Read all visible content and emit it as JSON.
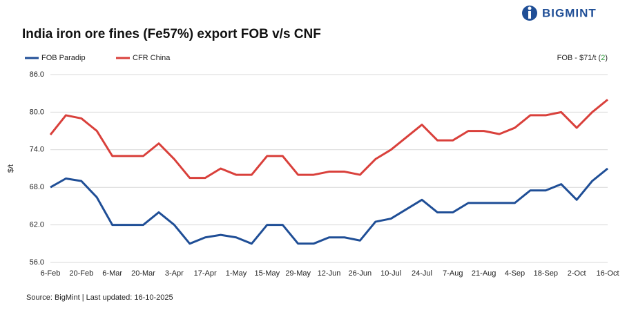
{
  "brand": "BIGMINT",
  "chart_data": {
    "type": "line",
    "title": "India iron ore fines (Fe57%) export FOB v/s CNF",
    "annotation": {
      "prefix": "FOB - $71/t (",
      "highlight": "2",
      "suffix": ")"
    },
    "y_label": "$/t",
    "source": "Source: BigMint | Last updated: 16-10-2025",
    "categories": [
      "6-Feb",
      null,
      "20-Feb",
      null,
      "6-Mar",
      null,
      "20-Mar",
      null,
      "3-Apr",
      null,
      "17-Apr",
      null,
      "1-May",
      null,
      "15-May",
      null,
      "29-May",
      null,
      "12-Jun",
      null,
      "26-Jun",
      null,
      "10-Jul",
      null,
      "24-Jul",
      null,
      "7-Aug",
      null,
      "21-Aug",
      null,
      "4-Sep",
      null,
      "18-Sep",
      null,
      "2-Oct",
      null,
      "16-Oct"
    ],
    "series": [
      {
        "name": "FOB Paradip",
        "color": "#1f4e96",
        "values": [
          68.0,
          69.4,
          69.0,
          66.4,
          62.0,
          62.0,
          62.0,
          64.0,
          62.0,
          59.0,
          60.0,
          60.4,
          60.0,
          59.0,
          62.0,
          62.0,
          59.0,
          59.0,
          60.0,
          60.0,
          59.5,
          62.5,
          63.0,
          64.5,
          66.0,
          64.0,
          64.0,
          65.5,
          65.5,
          65.5,
          65.5,
          67.5,
          67.5,
          68.5,
          66.0,
          69.0,
          71.0
        ]
      },
      {
        "name": "CFR China",
        "color": "#d9403b",
        "values": [
          76.4,
          79.5,
          79.0,
          77.0,
          73.0,
          73.0,
          73.0,
          75.0,
          72.5,
          69.5,
          69.5,
          71.0,
          70.0,
          70.0,
          73.0,
          73.0,
          70.0,
          70.0,
          70.5,
          70.5,
          70.0,
          72.5,
          74.0,
          76.0,
          78.0,
          75.5,
          75.5,
          77.0,
          77.0,
          76.5,
          77.5,
          79.5,
          79.5,
          80.0,
          77.5,
          80.0,
          82.0
        ]
      }
    ],
    "ylim": [
      56,
      86
    ],
    "yticks": [
      {
        "value": 56,
        "label": "56.0"
      },
      {
        "value": 62,
        "label": "62.0"
      },
      {
        "value": 68,
        "label": "68.0"
      },
      {
        "value": 74,
        "label": "74.0"
      },
      {
        "value": 80,
        "label": "80.0"
      },
      {
        "value": 86,
        "label": "86.0"
      }
    ],
    "grid": true
  }
}
